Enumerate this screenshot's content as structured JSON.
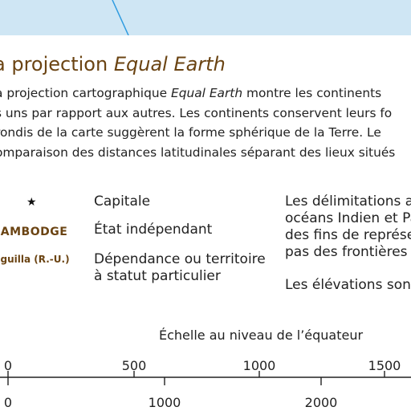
{
  "map": {
    "sea_color": "#cfe6f4",
    "line_color": "#2e9be0"
  },
  "title": {
    "prefix": "a projection ",
    "emphasis": "Equal Earth"
  },
  "description": {
    "line1_prefix": "a projection cartographique ",
    "line1_emphasis": "Equal Earth",
    "line1_suffix": " montre les continents",
    "line2": "s uns par rapport aux autres. Les continents conservent leurs fo",
    "line3": "rondis de la carte suggèrent la forme sphérique de la Terre. Le",
    "line4": "omparaison des distances latitudinales séparant des lieux situés"
  },
  "legend": {
    "capital_symbol": "★",
    "capital_label": "Capitale",
    "state_example": "CAMBODGE",
    "state_label": "État indépendant",
    "dependency_example": "nguilla (R.-U.)",
    "dependency_label_line1": "Dépendance ou territoire",
    "dependency_label_line2": "à statut particulier",
    "accent_color": "#6b4413"
  },
  "notes": {
    "line1": "Les délimitations a",
    "line2": "océans Indien et Pa",
    "line3": "des fins de représen",
    "line4": "pas des frontières n",
    "line5": "Les élévations sont"
  },
  "scale": {
    "title": "Échelle au niveau de l’équateur",
    "top_ticks": [
      "0",
      "500",
      "1000",
      "1500"
    ],
    "bottom_ticks": [
      "0",
      "1000",
      "2000"
    ]
  }
}
